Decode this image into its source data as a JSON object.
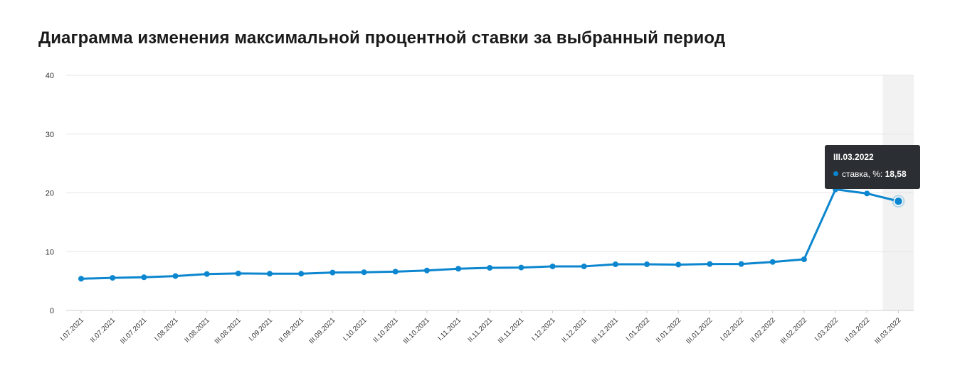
{
  "title": "Диаграмма изменения максимальной процентной ставки за выбранный период",
  "colors": {
    "line": "#0b86cf",
    "grid": "#e6e6e6",
    "highlight_band": "#f2f2f2",
    "tooltip_bg": "#2b2f33"
  },
  "tooltip": {
    "title": "III.03.2022",
    "series_label": "ставка, %:",
    "value": "18,58"
  },
  "chart_data": {
    "type": "line",
    "title": "Диаграмма изменения максимальной процентной ставки за выбранный период",
    "xlabel": "",
    "ylabel": "",
    "ylim": [
      0,
      40
    ],
    "yticks": [
      "0",
      "10",
      "20",
      "30",
      "40"
    ],
    "grid": true,
    "highlighted_category": "III.03.2022",
    "categories": [
      "I.07.2021",
      "II.07.2021",
      "III.07.2021",
      "I.08.2021",
      "II.08.2021",
      "III.08.2021",
      "I.09.2021",
      "II.09.2021",
      "III.09.2021",
      "I.10.2021",
      "II.10.2021",
      "III.10.2021",
      "I.11.2021",
      "II.11.2021",
      "III.11.2021",
      "I.12.2021",
      "II.12.2021",
      "III.12.2021",
      "I.01.2022",
      "II.01.2022",
      "III.01.2022",
      "I.02.2022",
      "II.02.2022",
      "III.02.2022",
      "I.03.2022",
      "II.03.2022",
      "III.03.2022"
    ],
    "series": [
      {
        "name": "ставка, %",
        "values": [
          5.4,
          5.55,
          5.65,
          5.85,
          6.2,
          6.3,
          6.25,
          6.25,
          6.45,
          6.5,
          6.6,
          6.8,
          7.1,
          7.25,
          7.3,
          7.5,
          7.5,
          7.85,
          7.85,
          7.8,
          7.9,
          7.9,
          8.25,
          8.7,
          20.6,
          19.9,
          18.58
        ]
      }
    ]
  }
}
